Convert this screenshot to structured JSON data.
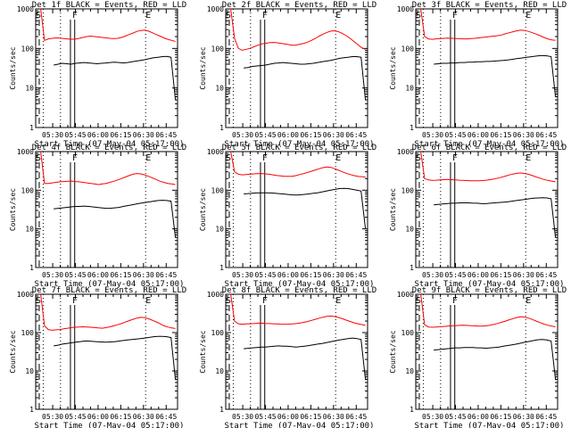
{
  "chart_data": [
    {
      "type": "line",
      "title": "Det 1f BLACK = Events, RED = LLD",
      "xlabel": "Start Time (07-May-04 05:17:00)",
      "ylabel": "Counts/sec",
      "yscale": "log",
      "ylim": [
        1,
        1000
      ],
      "x_ticks": [
        "05:30",
        "05:45",
        "06:00",
        "06:15",
        "06:30",
        "06:45"
      ],
      "y_ticks": [
        "1",
        "10",
        "100",
        "1000"
      ],
      "markers": [
        "S",
        "F",
        "E"
      ],
      "grid": false,
      "series": [
        {
          "color": "#ff0000",
          "role": "LLD",
          "values": [
            1000,
            160,
            175,
            180,
            185,
            182,
            178,
            175,
            170,
            172,
            180,
            190,
            200,
            205,
            200,
            195,
            190,
            185,
            180,
            178,
            180,
            190,
            205,
            225,
            245,
            270,
            285,
            290,
            275,
            250,
            225,
            205,
            185,
            170,
            160,
            150
          ]
        },
        {
          "color": "#000000",
          "role": "Events",
          "values": [
            null,
            null,
            null,
            38,
            40,
            42,
            41,
            40,
            42,
            43,
            44,
            43,
            42,
            41,
            42,
            43,
            44,
            45,
            44,
            43,
            44,
            46,
            48,
            50,
            52,
            55,
            58,
            60,
            62,
            63,
            60,
            5
          ]
        }
      ]
    },
    {
      "type": "line",
      "title": "Det 2f BLACK = Events, RED = LLD",
      "xlabel": "Start Time (07-May-04 05:17:00)",
      "ylabel": "Counts/sec",
      "yscale": "log",
      "ylim": [
        1,
        1000
      ],
      "x_ticks": [
        "05:30",
        "05:45",
        "06:00",
        "06:15",
        "06:30",
        "06:45"
      ],
      "y_ticks": [
        "1",
        "10",
        "100",
        "1000"
      ],
      "markers": [
        "S",
        "F",
        "E"
      ],
      "grid": false,
      "series": [
        {
          "color": "#ff0000",
          "role": "LLD",
          "values": [
            1000,
            180,
            100,
            90,
            95,
            100,
            110,
            120,
            130,
            135,
            140,
            142,
            140,
            135,
            130,
            125,
            120,
            122,
            128,
            135,
            145,
            160,
            180,
            205,
            230,
            255,
            275,
            280,
            265,
            240,
            210,
            180,
            150,
            125,
            105,
            95
          ]
        },
        {
          "color": "#000000",
          "role": "Events",
          "values": [
            null,
            null,
            null,
            32,
            33,
            35,
            36,
            37,
            38,
            40,
            42,
            43,
            44,
            43,
            42,
            41,
            40,
            40,
            41,
            42,
            44,
            46,
            48,
            50,
            53,
            56,
            58,
            60,
            62,
            62,
            60,
            5
          ]
        }
      ]
    },
    {
      "type": "line",
      "title": "Det 3f BLACK = Events, RED = LLD",
      "xlabel": "Start Time (07-May-04 05:17:00)",
      "ylabel": "Counts/sec",
      "yscale": "log",
      "ylim": [
        1,
        1000
      ],
      "x_ticks": [
        "05:30",
        "05:45",
        "06:00",
        "06:15",
        "06:30",
        "06:45"
      ],
      "y_ticks": [
        "1",
        "10",
        "100",
        "1000"
      ],
      "markers": [
        "S",
        "F",
        "E"
      ],
      "grid": false,
      "series": [
        {
          "color": "#ff0000",
          "role": "LLD",
          "values": [
            1000,
            200,
            175,
            170,
            175,
            178,
            180,
            182,
            180,
            178,
            176,
            175,
            175,
            178,
            180,
            185,
            190,
            195,
            200,
            205,
            210,
            220,
            235,
            250,
            265,
            280,
            290,
            285,
            270,
            250,
            230,
            210,
            190,
            175,
            165,
            160
          ]
        },
        {
          "color": "#000000",
          "role": "Events",
          "values": [
            null,
            null,
            null,
            40,
            41,
            42,
            42,
            43,
            43,
            44,
            44,
            45,
            45,
            46,
            46,
            47,
            47,
            48,
            49,
            50,
            51,
            53,
            55,
            57,
            59,
            61,
            63,
            65,
            66,
            65,
            62,
            6
          ]
        }
      ]
    },
    {
      "type": "line",
      "title": "Det 4f BLACK = Events, RED = LLD",
      "xlabel": "Start Time (07-May-04 05:17:00)",
      "ylabel": "Counts/sec",
      "yscale": "log",
      "ylim": [
        1,
        1000
      ],
      "x_ticks": [
        "05:30",
        "05:45",
        "06:00",
        "06:15",
        "06:30",
        "06:45"
      ],
      "y_ticks": [
        "1",
        "10",
        "100",
        "1000"
      ],
      "markers": [
        "S",
        "F",
        "E"
      ],
      "grid": false,
      "series": [
        {
          "color": "#ff0000",
          "role": "LLD",
          "values": [
            1000,
            150,
            150,
            155,
            160,
            165,
            168,
            170,
            172,
            168,
            165,
            160,
            155,
            150,
            145,
            140,
            145,
            150,
            160,
            170,
            185,
            200,
            220,
            240,
            260,
            270,
            265,
            250,
            230,
            210,
            190,
            170,
            160,
            150,
            145,
            140
          ]
        },
        {
          "color": "#000000",
          "role": "Events",
          "values": [
            null,
            null,
            null,
            33,
            34,
            35,
            36,
            37,
            38,
            38,
            39,
            38,
            37,
            36,
            35,
            34,
            34,
            35,
            36,
            38,
            40,
            42,
            44,
            46,
            48,
            50,
            52,
            54,
            55,
            54,
            52,
            6
          ]
        }
      ]
    },
    {
      "type": "line",
      "title": "Det 5f BLACK = Events, RED = LLD",
      "xlabel": "Start Time (07-May-04 05:17:00)",
      "ylabel": "Counts/sec",
      "yscale": "log",
      "ylim": [
        1,
        1000
      ],
      "x_ticks": [
        "05:30",
        "05:45",
        "06:00",
        "06:15",
        "06:30",
        "06:45"
      ],
      "y_ticks": [
        "1",
        "10",
        "100",
        "1000"
      ],
      "markers": [
        "S",
        "F",
        "E"
      ],
      "grid": false,
      "series": [
        {
          "color": "#ff0000",
          "role": "LLD",
          "values": [
            1000,
            300,
            260,
            250,
            255,
            260,
            265,
            268,
            270,
            265,
            260,
            250,
            240,
            235,
            230,
            228,
            230,
            240,
            255,
            270,
            290,
            310,
            335,
            360,
            385,
            400,
            390,
            360,
            330,
            300,
            275,
            255,
            240,
            230,
            225,
            220
          ]
        },
        {
          "color": "#000000",
          "role": "Events",
          "values": [
            null,
            null,
            null,
            80,
            82,
            84,
            85,
            86,
            86,
            85,
            84,
            82,
            80,
            78,
            76,
            75,
            76,
            78,
            80,
            83,
            86,
            90,
            95,
            100,
            105,
            110,
            112,
            110,
            105,
            100,
            95,
            10
          ]
        }
      ]
    },
    {
      "type": "line",
      "title": "Det 6f BLACK = Events, RED = LLD",
      "xlabel": "Start Time (07-May-04 05:17:00)",
      "ylabel": "Counts/sec",
      "yscale": "log",
      "ylim": [
        1,
        1000
      ],
      "x_ticks": [
        "05:30",
        "05:45",
        "06:00",
        "06:15",
        "06:30",
        "06:45"
      ],
      "y_ticks": [
        "1",
        "10",
        "100",
        "1000"
      ],
      "markers": [
        "S",
        "F",
        "E"
      ],
      "grid": false,
      "series": [
        {
          "color": "#ff0000",
          "role": "LLD",
          "values": [
            1000,
            200,
            185,
            180,
            182,
            185,
            188,
            190,
            188,
            185,
            182,
            180,
            178,
            176,
            175,
            176,
            178,
            182,
            188,
            195,
            205,
            218,
            232,
            248,
            262,
            275,
            280,
            272,
            258,
            240,
            220,
            205,
            190,
            180,
            172,
            165
          ]
        },
        {
          "color": "#000000",
          "role": "Events",
          "values": [
            null,
            null,
            null,
            42,
            43,
            44,
            45,
            46,
            46,
            47,
            47,
            47,
            46,
            46,
            45,
            45,
            46,
            47,
            48,
            49,
            50,
            52,
            54,
            56,
            58,
            60,
            62,
            63,
            64,
            63,
            60,
            6
          ]
        }
      ]
    },
    {
      "type": "line",
      "title": "Det 7f BLACK = Events, RED = LLD",
      "xlabel": "Start Time (07-May-04 05:17:00)",
      "ylabel": "Counts/sec",
      "yscale": "log",
      "ylim": [
        1,
        1000
      ],
      "x_ticks": [
        "05:30",
        "05:45",
        "06:00",
        "06:15",
        "06:30",
        "06:45"
      ],
      "y_ticks": [
        "1",
        "10",
        "100",
        "1000"
      ],
      "markers": [
        "S",
        "F",
        "E"
      ],
      "grid": false,
      "series": [
        {
          "color": "#ff0000",
          "role": "LLD",
          "values": [
            1000,
            150,
            120,
            115,
            118,
            120,
            125,
            130,
            135,
            138,
            140,
            142,
            140,
            138,
            135,
            132,
            130,
            135,
            142,
            150,
            160,
            172,
            188,
            205,
            222,
            240,
            250,
            245,
            230,
            210,
            190,
            170,
            150,
            140,
            132,
            128
          ]
        },
        {
          "color": "#000000",
          "role": "Events",
          "values": [
            null,
            null,
            null,
            45,
            47,
            50,
            52,
            54,
            56,
            58,
            60,
            60,
            59,
            58,
            57,
            56,
            57,
            58,
            60,
            62,
            64,
            66,
            68,
            70,
            72,
            75,
            78,
            80,
            80,
            78,
            74,
            6
          ]
        }
      ]
    },
    {
      "type": "line",
      "title": "Det 8f BLACK = Events, RED = LLD",
      "xlabel": "Start Time (07-May-04 05:17:00)",
      "ylabel": "Counts/sec",
      "yscale": "log",
      "ylim": [
        1,
        1000
      ],
      "x_ticks": [
        "05:30",
        "05:45",
        "06:00",
        "06:15",
        "06:30",
        "06:45"
      ],
      "y_ticks": [
        "1",
        "10",
        "100",
        "1000"
      ],
      "markers": [
        "S",
        "F",
        "E"
      ],
      "grid": false,
      "series": [
        {
          "color": "#ff0000",
          "role": "LLD",
          "values": [
            1000,
            200,
            170,
            165,
            168,
            170,
            172,
            175,
            176,
            174,
            172,
            170,
            168,
            166,
            165,
            166,
            168,
            172,
            178,
            185,
            195,
            208,
            222,
            238,
            252,
            265,
            270,
            262,
            248,
            230,
            212,
            195,
            180,
            170,
            162,
            155
          ]
        },
        {
          "color": "#000000",
          "role": "Events",
          "values": [
            null,
            null,
            null,
            38,
            39,
            40,
            41,
            42,
            42,
            43,
            44,
            45,
            44,
            44,
            43,
            42,
            43,
            44,
            46,
            48,
            50,
            52,
            55,
            58,
            61,
            64,
            67,
            70,
            72,
            70,
            66,
            6
          ]
        }
      ]
    },
    {
      "type": "line",
      "title": "Det 9f BLACK = Events, RED = LLD",
      "xlabel": "Start Time (07-May-04 05:17:00)",
      "ylabel": "Counts/sec",
      "yscale": "log",
      "ylim": [
        1,
        1000
      ],
      "x_ticks": [
        "05:30",
        "05:45",
        "06:00",
        "06:15",
        "06:30",
        "06:45"
      ],
      "y_ticks": [
        "1",
        "10",
        "100",
        "1000"
      ],
      "markers": [
        "S",
        "F",
        "E"
      ],
      "grid": false,
      "series": [
        {
          "color": "#ff0000",
          "role": "LLD",
          "values": [
            1000,
            160,
            140,
            138,
            140,
            142,
            145,
            148,
            150,
            152,
            154,
            155,
            154,
            152,
            150,
            148,
            147,
            150,
            156,
            164,
            174,
            186,
            200,
            216,
            232,
            248,
            258,
            252,
            238,
            220,
            200,
            182,
            166,
            156,
            148,
            142
          ]
        },
        {
          "color": "#000000",
          "role": "Events",
          "values": [
            null,
            null,
            null,
            35,
            36,
            37,
            38,
            39,
            40,
            40,
            41,
            41,
            41,
            40,
            40,
            39,
            40,
            41,
            42,
            44,
            46,
            48,
            50,
            53,
            56,
            59,
            62,
            65,
            66,
            64,
            60,
            6
          ]
        }
      ]
    }
  ]
}
